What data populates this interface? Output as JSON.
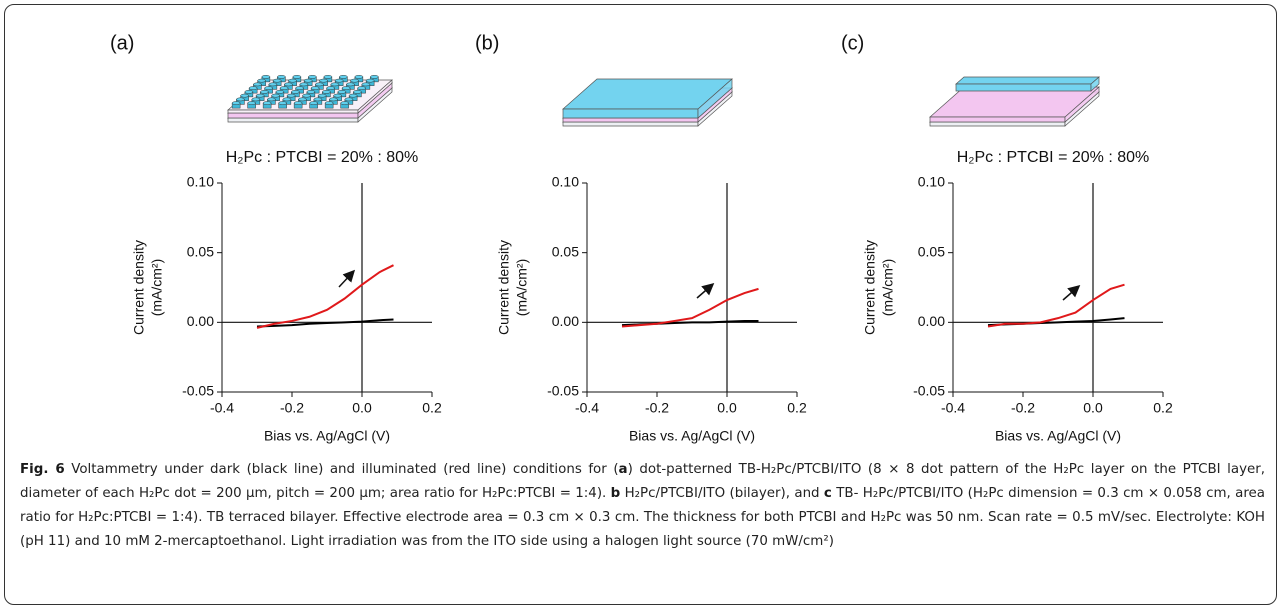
{
  "chart_data": [
    {
      "type": "line",
      "label": "(a)",
      "subtitle": "H₂Pc : PTCBI = 20% : 80%",
      "ylabel": [
        "Current density",
        "(mA/cm²)"
      ],
      "xlabel": "Bias vs. Ag/AgCl (V)",
      "x": [
        -0.3,
        -0.25,
        -0.2,
        -0.15,
        -0.1,
        -0.05,
        0,
        0.05,
        0.09
      ],
      "series": [
        {
          "color": "#000000",
          "values": [
            -0.003,
            -0.0025,
            -0.002,
            -0.001,
            -0.0005,
            0.0,
            0.0005,
            0.0015,
            0.002
          ]
        },
        {
          "color": "#e0191b",
          "values": [
            -0.004,
            -0.001,
            0.001,
            0.004,
            0.009,
            0.017,
            0.027,
            0.036,
            0.041
          ]
        }
      ],
      "xlim": [
        -0.4,
        0.2
      ],
      "ylim": [
        -0.05,
        0.1
      ],
      "xticks": [
        -0.4,
        -0.2,
        {
          "value": 0,
          "label": "0.0"
        },
        0.2
      ],
      "yticks": [
        {
          "value": -0.05,
          "label": "-0.05"
        },
        {
          "value": 0,
          "label": "0.00"
        },
        {
          "value": 0.05,
          "label": "0.05"
        },
        {
          "value": 0.1,
          "label": "0.10"
        }
      ]
    },
    {
      "type": "line",
      "label": "(b)",
      "ylabel": [
        "Current density",
        "(mA/cm²)"
      ],
      "xlabel": "Bias vs. Ag/AgCl (V)",
      "x": [
        -0.3,
        -0.25,
        -0.2,
        -0.15,
        -0.1,
        -0.05,
        0,
        0.05,
        0.09
      ],
      "series": [
        {
          "color": "#000000",
          "values": [
            -0.002,
            -0.0015,
            -0.001,
            -0.0005,
            0.0,
            0.0,
            0.0005,
            0.001,
            0.001
          ]
        },
        {
          "color": "#e0191b",
          "values": [
            -0.003,
            -0.002,
            -0.001,
            0.001,
            0.003,
            0.009,
            0.016,
            0.021,
            0.024
          ]
        }
      ],
      "xlim": [
        -0.4,
        0.2
      ],
      "ylim": [
        -0.05,
        0.1
      ],
      "xticks": [
        -0.4,
        -0.2,
        {
          "value": 0,
          "label": "0.0"
        },
        0.2
      ],
      "yticks": [
        {
          "value": -0.05,
          "label": "-0.05"
        },
        {
          "value": 0,
          "label": "0.00"
        },
        {
          "value": 0.05,
          "label": "0.05"
        },
        {
          "value": 0.1,
          "label": "0.10"
        }
      ]
    },
    {
      "type": "line",
      "label": "(c)",
      "subtitle": "H₂Pc : PTCBI = 20% : 80%",
      "ylabel": [
        "Current density",
        "(mA/cm²)"
      ],
      "xlabel": "Bias vs. Ag/AgCl (V)",
      "x": [
        -0.3,
        -0.25,
        -0.2,
        -0.15,
        -0.1,
        -0.05,
        0,
        0.05,
        0.09
      ],
      "series": [
        {
          "color": "#000000",
          "values": [
            -0.002,
            -0.0015,
            -0.001,
            -0.0005,
            0.0,
            0.0005,
            0.001,
            0.002,
            0.003
          ]
        },
        {
          "color": "#e0191b",
          "values": [
            -0.003,
            -0.001,
            -0.001,
            0.0,
            0.003,
            0.007,
            0.016,
            0.024,
            0.027
          ]
        }
      ],
      "xlim": [
        -0.4,
        0.2
      ],
      "ylim": [
        -0.05,
        0.1
      ],
      "xticks": [
        -0.4,
        -0.2,
        {
          "value": 0,
          "label": "0.0"
        },
        0.2
      ],
      "yticks": [
        {
          "value": -0.05,
          "label": "-0.05"
        },
        {
          "value": 0,
          "label": "0.00"
        },
        {
          "value": 0.05,
          "label": "0.05"
        },
        {
          "value": 0.1,
          "label": "0.10"
        }
      ]
    }
  ],
  "caption": [
    "Fig. 6",
    " Voltammetry under dark (black line) and illuminated (red line) conditions for (",
    "a",
    ") dot-patterned TB-H₂Pc/PTCBI/ITO (8 × 8 dot pattern of the H₂Pc layer on the PTCBI layer, diameter of each H₂Pc dot = 200 μm, pitch = 200 μm; area ratio for H₂Pc:PTCBI = 1:4). ",
    "b",
    " H₂Pc/PTCBI/ITO (bilayer), and ",
    "c",
    " TB- H₂Pc/PTCBI/ITO (H₂Pc dimension = 0.3 cm × 0.058 cm, area ratio for H₂Pc:PTCBI = 1:4). TB terraced bilayer. Effective electrode area = 0.3 cm × 0.3 cm. The thickness for both PTCBI and H₂Pc was 50 nm. Scan rate = 0.5 mV/sec. Electrolyte: KOH (pH 11) and 10 mM 2-mercaptoethanol. Light irradiation was from the ITO side using a halogen light source (70 mW/cm²)"
  ]
}
